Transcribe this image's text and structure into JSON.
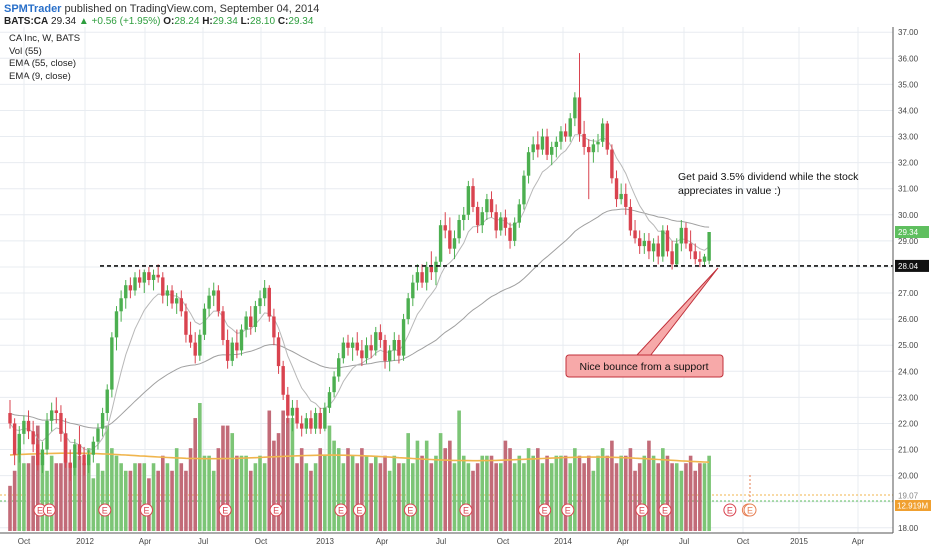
{
  "header": {
    "publisher": "SPMTrader",
    "published_text": "published on TradingView.com, September 04, 2014"
  },
  "quote": {
    "symbol": "BATS:CA",
    "last": "29.34",
    "change": "+0.56 (+1.95%)",
    "o_label": "O:",
    "o": "28.24",
    "h_label": "H:",
    "h": "29.34",
    "l_label": "L:",
    "l": "28.10",
    "c_label": "C:",
    "c": "29.34"
  },
  "legend": {
    "title": "CA Inc, W, BATS",
    "items": [
      "Vol (55)",
      "EMA (55, close)",
      "EMA (9, close)"
    ]
  },
  "colors": {
    "up": "#4caf50",
    "down": "#d9434f",
    "vol_up": "#7cc576",
    "vol_down": "#c26b78",
    "ema55": "#a0a0a0",
    "ema9": "#b8b8b8",
    "vol_ma": "#f0b54d",
    "grid": "#e8ecf1",
    "callout_fill": "#f7a9a9",
    "callout_stroke": "#c0303a"
  },
  "chart_data": {
    "type": "candlestick",
    "title": "CA Inc, W, BATS",
    "x_ticks": [
      "Oct",
      "2012",
      "Apr",
      "Jul",
      "Oct",
      "2013",
      "Apr",
      "Jul",
      "Oct",
      "2014",
      "Apr",
      "Jul",
      "Oct",
      "2015",
      "Apr"
    ],
    "y_ticks": [
      "37.00",
      "36.00",
      "35.00",
      "34.00",
      "33.00",
      "32.00",
      "31.00",
      "30.00",
      "29.00",
      "28.00",
      "27.00",
      "26.00",
      "25.00",
      "24.00",
      "23.00",
      "22.00",
      "21.00",
      "20.00",
      "19.00",
      "18.00"
    ],
    "ylim": [
      17.8,
      37.2
    ],
    "price_series": [
      [
        22.4,
        22.9,
        21.8,
        22.0
      ],
      [
        22.0,
        22.2,
        20.4,
        20.8
      ],
      [
        20.8,
        21.9,
        20.5,
        21.6
      ],
      [
        21.6,
        22.3,
        21.2,
        22.1
      ],
      [
        22.1,
        22.5,
        21.4,
        21.7
      ],
      [
        21.7,
        22.1,
        20.9,
        21.2
      ],
      [
        21.2,
        21.6,
        20.2,
        20.4
      ],
      [
        20.4,
        21.3,
        20.1,
        21.0
      ],
      [
        21.0,
        22.4,
        20.8,
        22.1
      ],
      [
        22.1,
        22.8,
        21.7,
        22.5
      ],
      [
        22.5,
        23.0,
        22.0,
        22.4
      ],
      [
        22.4,
        22.7,
        21.3,
        21.6
      ],
      [
        21.6,
        22.2,
        20.3,
        20.5
      ],
      [
        20.5,
        21.0,
        19.8,
        20.3
      ],
      [
        20.3,
        21.4,
        20.0,
        21.2
      ],
      [
        21.2,
        21.9,
        20.6,
        20.8
      ],
      [
        20.8,
        21.1,
        20.0,
        20.4
      ],
      [
        20.4,
        21.0,
        20.1,
        20.8
      ],
      [
        20.8,
        21.5,
        20.5,
        21.3
      ],
      [
        21.3,
        22.0,
        21.0,
        21.8
      ],
      [
        21.8,
        22.6,
        21.5,
        22.4
      ],
      [
        22.4,
        23.5,
        22.1,
        23.3
      ],
      [
        23.3,
        25.5,
        23.0,
        25.3
      ],
      [
        25.3,
        26.5,
        24.8,
        26.3
      ],
      [
        26.3,
        27.1,
        25.9,
        26.8
      ],
      [
        26.8,
        27.5,
        26.4,
        27.3
      ],
      [
        27.3,
        27.6,
        26.8,
        27.1
      ],
      [
        27.1,
        27.8,
        26.9,
        27.6
      ],
      [
        27.6,
        27.9,
        27.2,
        27.4
      ],
      [
        27.4,
        27.9,
        27.0,
        27.8
      ],
      [
        27.8,
        28.0,
        27.3,
        27.5
      ],
      [
        27.5,
        27.9,
        27.1,
        27.7
      ],
      [
        27.7,
        28.1,
        27.4,
        27.6
      ],
      [
        27.6,
        27.8,
        26.6,
        26.9
      ],
      [
        26.9,
        27.3,
        26.5,
        27.1
      ],
      [
        27.1,
        27.3,
        26.4,
        26.6
      ],
      [
        26.6,
        27.0,
        26.2,
        26.8
      ],
      [
        26.8,
        27.1,
        26.1,
        26.3
      ],
      [
        26.3,
        26.6,
        25.1,
        25.4
      ],
      [
        25.4,
        25.9,
        24.9,
        25.1
      ],
      [
        25.1,
        25.5,
        24.3,
        24.6
      ],
      [
        24.6,
        25.6,
        24.4,
        25.4
      ],
      [
        25.4,
        26.6,
        25.2,
        26.4
      ],
      [
        26.4,
        27.2,
        26.1,
        26.9
      ],
      [
        26.9,
        27.4,
        26.5,
        27.1
      ],
      [
        27.1,
        27.3,
        26.1,
        26.3
      ],
      [
        26.3,
        26.5,
        25.0,
        25.2
      ],
      [
        25.2,
        25.6,
        24.1,
        24.4
      ],
      [
        24.4,
        25.3,
        24.2,
        25.1
      ],
      [
        25.1,
        25.6,
        24.5,
        24.8
      ],
      [
        24.8,
        25.8,
        24.6,
        25.6
      ],
      [
        25.6,
        26.3,
        25.3,
        26.1
      ],
      [
        26.1,
        26.5,
        25.4,
        25.7
      ],
      [
        25.7,
        26.7,
        25.5,
        26.5
      ],
      [
        26.5,
        27.1,
        26.2,
        26.8
      ],
      [
        26.8,
        27.5,
        26.5,
        27.2
      ],
      [
        27.2,
        27.3,
        25.9,
        26.1
      ],
      [
        26.1,
        26.4,
        25.0,
        25.3
      ],
      [
        25.3,
        25.5,
        23.9,
        24.2
      ],
      [
        24.2,
        24.4,
        22.9,
        23.1
      ],
      [
        23.1,
        23.4,
        22.0,
        22.3
      ],
      [
        22.3,
        22.9,
        21.7,
        22.6
      ],
      [
        22.6,
        22.9,
        21.8,
        22.0
      ],
      [
        22.0,
        22.3,
        21.5,
        21.8
      ],
      [
        21.8,
        22.4,
        21.6,
        22.2
      ],
      [
        22.2,
        22.5,
        21.6,
        21.8
      ],
      [
        21.8,
        22.6,
        21.6,
        22.4
      ],
      [
        22.4,
        22.6,
        21.6,
        21.8
      ],
      [
        21.8,
        22.8,
        21.7,
        22.6
      ],
      [
        22.6,
        23.4,
        22.4,
        23.2
      ],
      [
        23.2,
        24.0,
        23.0,
        23.8
      ],
      [
        23.8,
        24.7,
        23.6,
        24.5
      ],
      [
        24.5,
        25.3,
        24.3,
        25.1
      ],
      [
        25.1,
        25.4,
        24.6,
        24.9
      ],
      [
        24.9,
        25.3,
        24.4,
        25.1
      ],
      [
        25.1,
        25.5,
        24.6,
        24.8
      ],
      [
        24.8,
        25.2,
        24.2,
        24.5
      ],
      [
        24.5,
        25.3,
        24.3,
        25.0
      ],
      [
        25.0,
        25.4,
        24.5,
        24.8
      ],
      [
        24.8,
        25.7,
        24.6,
        25.5
      ],
      [
        25.5,
        25.8,
        24.9,
        25.2
      ],
      [
        25.2,
        25.4,
        24.1,
        24.4
      ],
      [
        24.4,
        25.0,
        24.0,
        24.8
      ],
      [
        24.8,
        25.5,
        24.4,
        25.2
      ],
      [
        25.2,
        25.4,
        24.3,
        24.6
      ],
      [
        24.6,
        26.2,
        24.4,
        26.0
      ],
      [
        26.0,
        27.0,
        25.8,
        26.8
      ],
      [
        26.8,
        27.7,
        26.5,
        27.4
      ],
      [
        27.4,
        28.1,
        27.1,
        27.8
      ],
      [
        27.8,
        28.1,
        27.2,
        27.4
      ],
      [
        27.4,
        28.2,
        27.1,
        28.0
      ],
      [
        28.0,
        28.6,
        27.5,
        27.8
      ],
      [
        27.8,
        28.4,
        27.3,
        28.2
      ],
      [
        28.2,
        29.8,
        28.0,
        29.6
      ],
      [
        29.6,
        30.1,
        29.1,
        29.4
      ],
      [
        29.4,
        29.9,
        28.5,
        28.7
      ],
      [
        28.7,
        29.4,
        28.3,
        29.1
      ],
      [
        29.1,
        30.0,
        28.9,
        29.8
      ],
      [
        29.8,
        30.3,
        29.4,
        30.0
      ],
      [
        30.0,
        31.3,
        29.8,
        31.1
      ],
      [
        31.1,
        31.4,
        30.1,
        30.3
      ],
      [
        30.3,
        30.5,
        29.3,
        29.6
      ],
      [
        29.6,
        30.3,
        29.3,
        30.1
      ],
      [
        30.1,
        30.8,
        29.8,
        30.6
      ],
      [
        30.6,
        30.9,
        29.9,
        30.1
      ],
      [
        30.1,
        30.4,
        29.1,
        29.4
      ],
      [
        29.4,
        30.1,
        29.2,
        29.9
      ],
      [
        29.9,
        30.2,
        29.2,
        29.5
      ],
      [
        29.5,
        29.7,
        28.7,
        29.0
      ],
      [
        29.0,
        29.9,
        28.8,
        29.7
      ],
      [
        29.7,
        30.6,
        29.5,
        30.4
      ],
      [
        30.4,
        31.7,
        30.2,
        31.5
      ],
      [
        31.5,
        32.6,
        31.2,
        32.4
      ],
      [
        32.4,
        33.0,
        32.1,
        32.7
      ],
      [
        32.7,
        33.2,
        32.2,
        32.5
      ],
      [
        32.5,
        33.3,
        32.3,
        33.0
      ],
      [
        33.0,
        33.3,
        32.1,
        32.3
      ],
      [
        32.3,
        32.8,
        31.9,
        32.6
      ],
      [
        32.6,
        33.0,
        32.2,
        32.8
      ],
      [
        32.8,
        33.4,
        32.5,
        33.2
      ],
      [
        33.2,
        33.5,
        32.8,
        33.0
      ],
      [
        33.0,
        33.9,
        32.8,
        33.7
      ],
      [
        33.7,
        34.7,
        33.4,
        34.5
      ],
      [
        34.5,
        36.2,
        32.8,
        33.1
      ],
      [
        33.1,
        33.6,
        32.3,
        32.6
      ],
      [
        32.6,
        32.9,
        30.6,
        32.4
      ],
      [
        32.4,
        32.9,
        32.0,
        32.7
      ],
      [
        32.7,
        33.1,
        32.4,
        32.8
      ],
      [
        32.8,
        33.7,
        32.6,
        33.5
      ],
      [
        33.5,
        33.6,
        32.3,
        32.5
      ],
      [
        32.5,
        32.7,
        31.2,
        31.4
      ],
      [
        31.4,
        31.7,
        30.3,
        30.6
      ],
      [
        30.6,
        31.2,
        30.4,
        30.8
      ],
      [
        30.8,
        31.2,
        30.0,
        30.3
      ],
      [
        30.3,
        30.6,
        29.2,
        29.4
      ],
      [
        29.4,
        29.8,
        28.9,
        29.1
      ],
      [
        29.1,
        29.4,
        28.5,
        28.8
      ],
      [
        28.8,
        29.3,
        28.5,
        29.0
      ],
      [
        29.0,
        29.3,
        28.3,
        28.6
      ],
      [
        28.6,
        29.1,
        28.2,
        28.9
      ],
      [
        28.9,
        29.2,
        28.1,
        28.4
      ],
      [
        28.4,
        29.6,
        28.2,
        29.4
      ],
      [
        29.4,
        29.6,
        28.4,
        28.6
      ],
      [
        28.6,
        29.0,
        27.9,
        28.1
      ],
      [
        28.1,
        29.1,
        28.0,
        28.9
      ],
      [
        28.9,
        29.8,
        28.6,
        29.5
      ],
      [
        29.5,
        29.7,
        28.7,
        28.9
      ],
      [
        28.9,
        29.4,
        28.3,
        28.6
      ],
      [
        28.6,
        28.9,
        28.1,
        28.3
      ],
      [
        28.3,
        28.6,
        28.0,
        28.2
      ],
      [
        28.2,
        28.5,
        28.0,
        28.4
      ],
      [
        28.24,
        29.34,
        28.1,
        29.34
      ]
    ],
    "volume_series": [
      6,
      8,
      11,
      9,
      9,
      10,
      14,
      10,
      8,
      10,
      9,
      9,
      13,
      9,
      10,
      10,
      9,
      11,
      7,
      9,
      8,
      14,
      11,
      10,
      9,
      8,
      8,
      9,
      9,
      9,
      7,
      9,
      8,
      10,
      9,
      8,
      11,
      9,
      8,
      11,
      15,
      17,
      10,
      10,
      8,
      11,
      14,
      14,
      13,
      10,
      10,
      10,
      8,
      9,
      10,
      9,
      16,
      12,
      13,
      16,
      15,
      15,
      9,
      11,
      9,
      8,
      9,
      11,
      10,
      14,
      12,
      11,
      9,
      11,
      10,
      9,
      11,
      10,
      9,
      10,
      9,
      10,
      8,
      10,
      9,
      9,
      13,
      9,
      12,
      10,
      12,
      9,
      10,
      13,
      11,
      12,
      9,
      16,
      10,
      9,
      8,
      9,
      10,
      10,
      10,
      9,
      9,
      12,
      11,
      9,
      10,
      9,
      11,
      10,
      11,
      9,
      10,
      9,
      10,
      10,
      10,
      9,
      11,
      10,
      9,
      10,
      8,
      10,
      11,
      10,
      12,
      9,
      10,
      10,
      11,
      8,
      9,
      10,
      12,
      10,
      9,
      11,
      10,
      9,
      9,
      8,
      9,
      10,
      8,
      9,
      9,
      10
    ],
    "annotations": {
      "dividend_note": "Get paid 3.5% dividend while the stock appreciates in value :)",
      "dividend_line1": "Get paid 3.5% dividend while the stock",
      "dividend_line2": "appreciates in value :)",
      "callout": "Nice bounce from a support",
      "support_level": 28.04,
      "support_label": "28.04",
      "last_price_label": "29.34",
      "volume_label": "12.919M",
      "volume_ma_label": "19.07"
    },
    "earnings_markers": {
      "label": "E",
      "indices": [
        0,
        2,
        14,
        23,
        40,
        51,
        65,
        69,
        80,
        92,
        109,
        114,
        130,
        135,
        149,
        153
      ]
    }
  }
}
